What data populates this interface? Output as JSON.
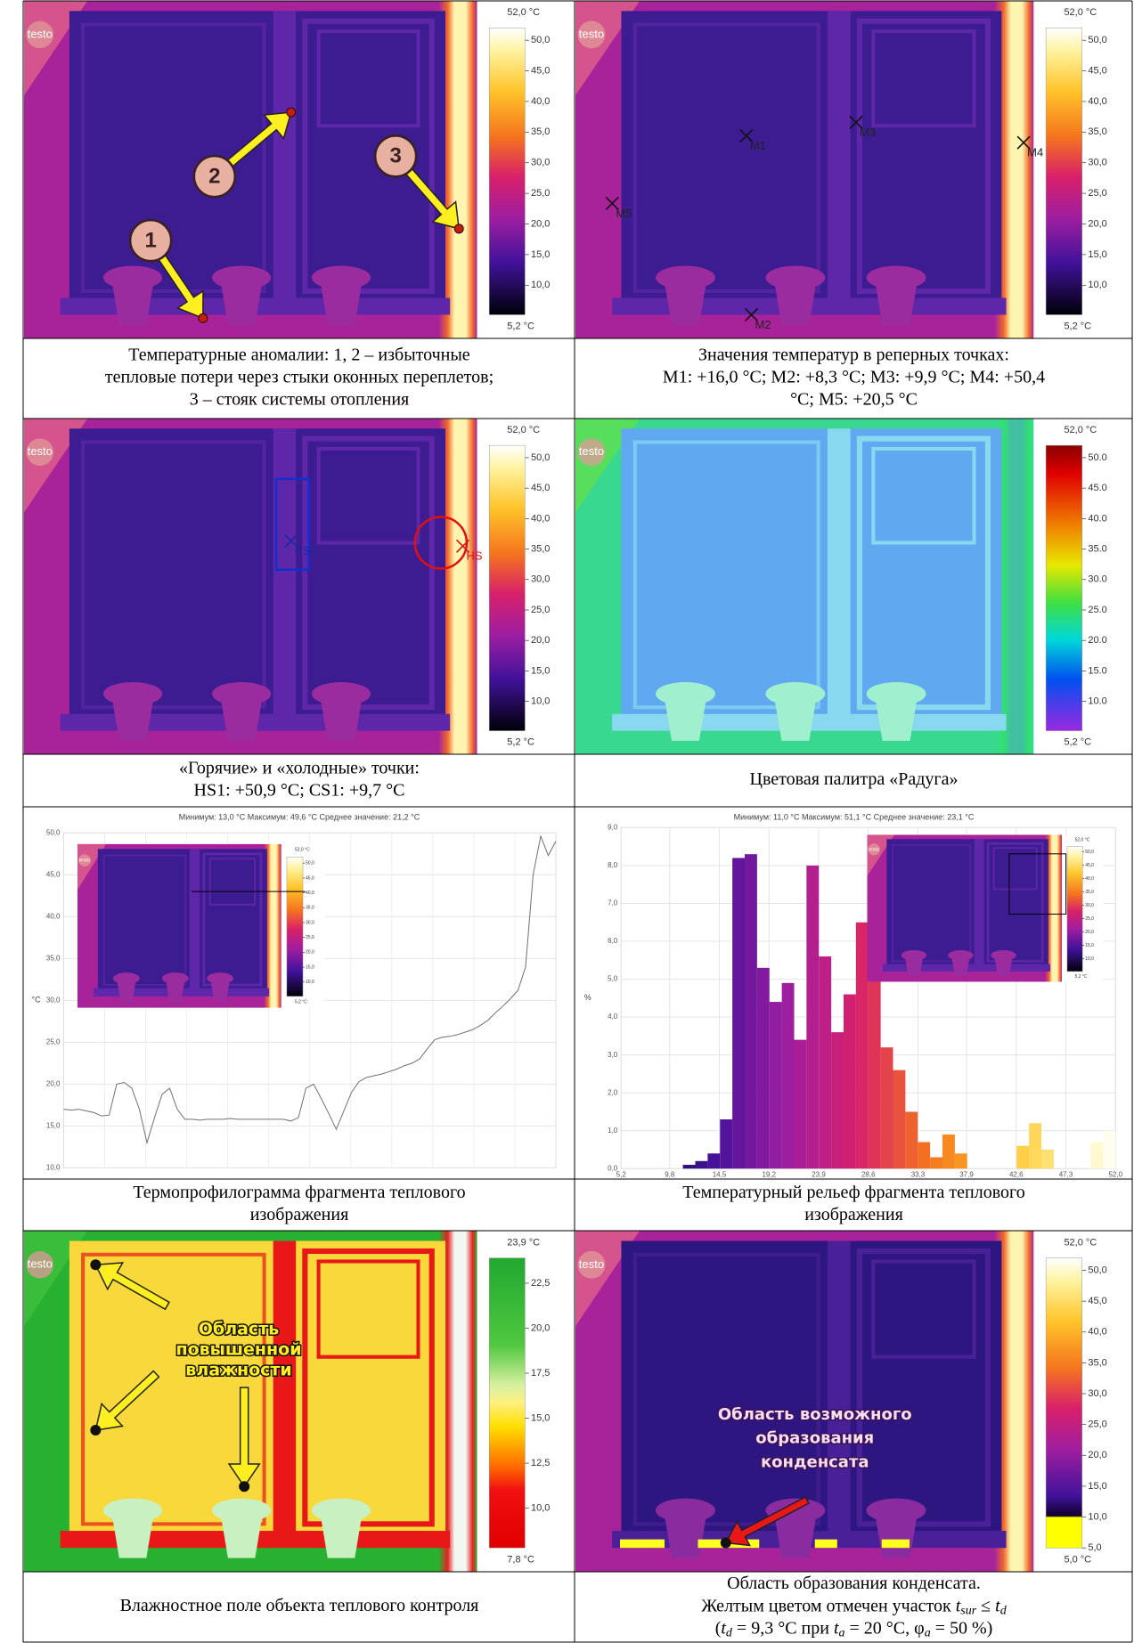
{
  "panels": [
    {
      "logo": "testo",
      "scale": {
        "max": "52,0 °C",
        "min": "5,2 °C",
        "ticks": [
          "50,0",
          "45,0",
          "40,0",
          "35,0",
          "30,0",
          "25,0",
          "20,0",
          "15,0",
          "10,0"
        ]
      },
      "markers": [
        "1",
        "2",
        "3"
      ],
      "caption": [
        "Температурные аномалии: 1, 2 – избыточные",
        "тепловые потери через стыки оконных переплетов;",
        "3 – стояк системы отопления"
      ]
    },
    {
      "logo": "testo",
      "scale": {
        "max": "52,0 °C",
        "min": "5,2 °C",
        "ticks": [
          "50,0",
          "45,0",
          "40,0",
          "35,0",
          "30,0",
          "25,0",
          "20,0",
          "15,0",
          "10,0"
        ]
      },
      "points": [
        "M1",
        "M2",
        "M3",
        "M4",
        "M5"
      ],
      "caption": [
        "Значения температур в реперных точках:",
        "M1: +16,0 °C; M2: +8,3 °C; M3: +9,9 °C; M4: +50,4",
        "°C; M5: +20,5 °C"
      ]
    },
    {
      "logo": "testo",
      "scale": {
        "max": "52,0 °C",
        "min": "5,2 °C",
        "ticks": [
          "50,0",
          "45,0",
          "40,0",
          "35,0",
          "30,0",
          "25,0",
          "20,0",
          "15,0",
          "10,0"
        ]
      },
      "points": [
        "CS1",
        "HS"
      ],
      "caption": [
        "«Горячие» и «холодные» точки:",
        "HS1: +50,9 °C; CS1: +9,7 °C"
      ]
    },
    {
      "logo": "testo",
      "scale": {
        "max": "52,0 °C",
        "min": "5,2 °C",
        "ticks": [
          "50.0",
          "45.0",
          "40.0",
          "35.0",
          "30.0",
          "25.0",
          "20.0",
          "15.0",
          "10.0"
        ]
      },
      "caption": [
        "Цветовая палитра «Радуга»"
      ]
    },
    {
      "chart": {
        "type": "line",
        "title": "Минимум: 13,0 °C Максимум: 49,6 °C Среднее значение: 21,2 °C",
        "ylabel": "°C",
        "ylim": [
          10,
          50
        ],
        "yticks": [
          {
            "value": 10,
            "label": "10,0"
          },
          {
            "value": 15,
            "label": "15,0"
          },
          {
            "value": 20,
            "label": "20,0"
          },
          {
            "value": 25,
            "label": "25,0"
          },
          {
            "value": 30,
            "label": "30,0"
          },
          {
            "value": 35,
            "label": "35,0"
          },
          {
            "value": 40,
            "label": "40,0"
          },
          {
            "value": 45,
            "label": "45,0"
          },
          {
            "value": 50,
            "label": "50,0"
          }
        ],
        "grid": true,
        "color": "#707070",
        "values": [
          17.0,
          16.9,
          17.0,
          16.8,
          16.6,
          16.2,
          16.3,
          20.0,
          20.2,
          19.5,
          17.0,
          13.0,
          16.0,
          18.8,
          19.5,
          17.0,
          15.8,
          15.8,
          15.7,
          15.8,
          15.8,
          15.8,
          15.9,
          15.8,
          15.8,
          15.8,
          15.8,
          15.8,
          15.8,
          15.8,
          15.6,
          16.0,
          19.5,
          20.0,
          18.3,
          16.5,
          14.6,
          16.8,
          19.0,
          20.3,
          20.8,
          21.0,
          21.2,
          21.5,
          21.8,
          22.2,
          22.5,
          23.0,
          24.2,
          25.3,
          25.6,
          25.7,
          25.9,
          26.2,
          26.5,
          27.0,
          27.6,
          28.5,
          29.3,
          30.2,
          31.2,
          34.0,
          45.0,
          49.6,
          47.3,
          49.0
        ],
        "inset": {
          "logo": "testo",
          "scale": {
            "max": "52,0 °C",
            "min": "5,2 °C",
            "ticks": [
              "50,0",
              "45,0",
              "40,0",
              "35,0",
              "30,0",
              "25,0",
              "20,0",
              "15,0",
              "10,0"
            ]
          }
        }
      },
      "caption": [
        "Термопрофилограмма фрагмента теплового",
        "изображения"
      ]
    },
    {
      "chart": {
        "type": "histogram",
        "title": "Минимум: 11,0 °C Максимум: 51,1 °C Среднее значение: 23,1 °C",
        "ylabel": "%",
        "xlim": [
          5.2,
          52.0
        ],
        "ylim": [
          0,
          9
        ],
        "xticks": [
          {
            "value": 5.2,
            "label": "5,2"
          },
          {
            "value": 9.8,
            "label": "9,8"
          },
          {
            "value": 14.5,
            "label": "14,5"
          },
          {
            "value": 19.2,
            "label": "19,2"
          },
          {
            "value": 23.9,
            "label": "23,9"
          },
          {
            "value": 28.6,
            "label": "28,6"
          },
          {
            "value": 33.3,
            "label": "33,3"
          },
          {
            "value": 37.9,
            "label": "37,9"
          },
          {
            "value": 42.6,
            "label": "42,6"
          },
          {
            "value": 47.3,
            "label": "47,3"
          },
          {
            "value": 52.0,
            "label": "52,0"
          }
        ],
        "yticks": [
          {
            "value": 0,
            "label": "0,0"
          },
          {
            "value": 1,
            "label": "1,0"
          },
          {
            "value": 2,
            "label": "2,0"
          },
          {
            "value": 3,
            "label": "3,0"
          },
          {
            "value": 4,
            "label": "4,0"
          },
          {
            "value": 5,
            "label": "5,0"
          },
          {
            "value": 6,
            "label": "6,0"
          },
          {
            "value": 7,
            "label": "7,0"
          },
          {
            "value": 8,
            "label": "8,0"
          },
          {
            "value": 9,
            "label": "9,0"
          }
        ],
        "grid": true,
        "bins": [
          5.2,
          6.37,
          7.54,
          8.71,
          9.88,
          11.05,
          12.22,
          13.39,
          14.56,
          15.73,
          16.9,
          18.07,
          19.24,
          20.41,
          21.58,
          22.75,
          23.92,
          25.09,
          26.26,
          27.43,
          28.6,
          29.77,
          30.94,
          32.11,
          33.28,
          34.45,
          35.62,
          36.79,
          37.96,
          39.13,
          40.3,
          41.47,
          42.64,
          43.81,
          44.98,
          46.15,
          47.32,
          48.49,
          49.66,
          50.83,
          52.0
        ],
        "values": [
          0,
          0,
          0,
          0,
          0,
          0.1,
          0.2,
          0.4,
          1.3,
          8.2,
          8.3,
          5.3,
          4.4,
          4.9,
          3.4,
          8.0,
          5.6,
          3.6,
          4.6,
          6.5,
          5.2,
          3.2,
          2.6,
          1.5,
          0.7,
          0.3,
          0.9,
          0.4,
          0,
          0,
          0,
          0,
          0.6,
          1.2,
          0.5,
          0,
          0,
          0,
          0.7,
          1.0
        ],
        "inset": {
          "logo": "testo",
          "scale": {
            "max": "52,0 °C",
            "min": "5,2 °C",
            "ticks": [
              "50,0",
              "45,0",
              "40,0",
              "35,0",
              "30,0",
              "25,0",
              "20,0",
              "15,0",
              "10,0"
            ]
          }
        }
      },
      "caption": [
        "Температурный рельеф фрагмента теплового",
        "изображения"
      ]
    },
    {
      "logo": "testo",
      "scale": {
        "max": "23,9 °C",
        "min": "7,8 °C",
        "ticks": [
          "22,5",
          "20,0",
          "17,5",
          "15,0",
          "12,5",
          "10,0"
        ]
      },
      "annotation": [
        "Область",
        "повышенной",
        "влажности"
      ],
      "caption": [
        "Влажностное поле объекта теплового контроля"
      ]
    },
    {
      "logo": "testo",
      "scale": {
        "max": "52,0 °C",
        "min": "5,0 °C",
        "ticks": [
          "50,0",
          "45,0",
          "40,0",
          "35,0",
          "30,0",
          "25,0",
          "20,0",
          "15,0",
          "10,0",
          "5,0"
        ]
      },
      "annotation": [
        "Область возможного",
        "образования",
        "конденсата"
      ],
      "caption": [
        "Область образования конденсата.",
        [
          "Желтым цветом отмечен участок ",
          "t",
          "sur",
          " ≤ ",
          "t",
          "d"
        ],
        [
          "(",
          "t",
          "d",
          " = 9,3 °C при ",
          "t",
          "a",
          " = 20 °C, φ",
          "a",
          " = 50 %)"
        ]
      ]
    }
  ]
}
